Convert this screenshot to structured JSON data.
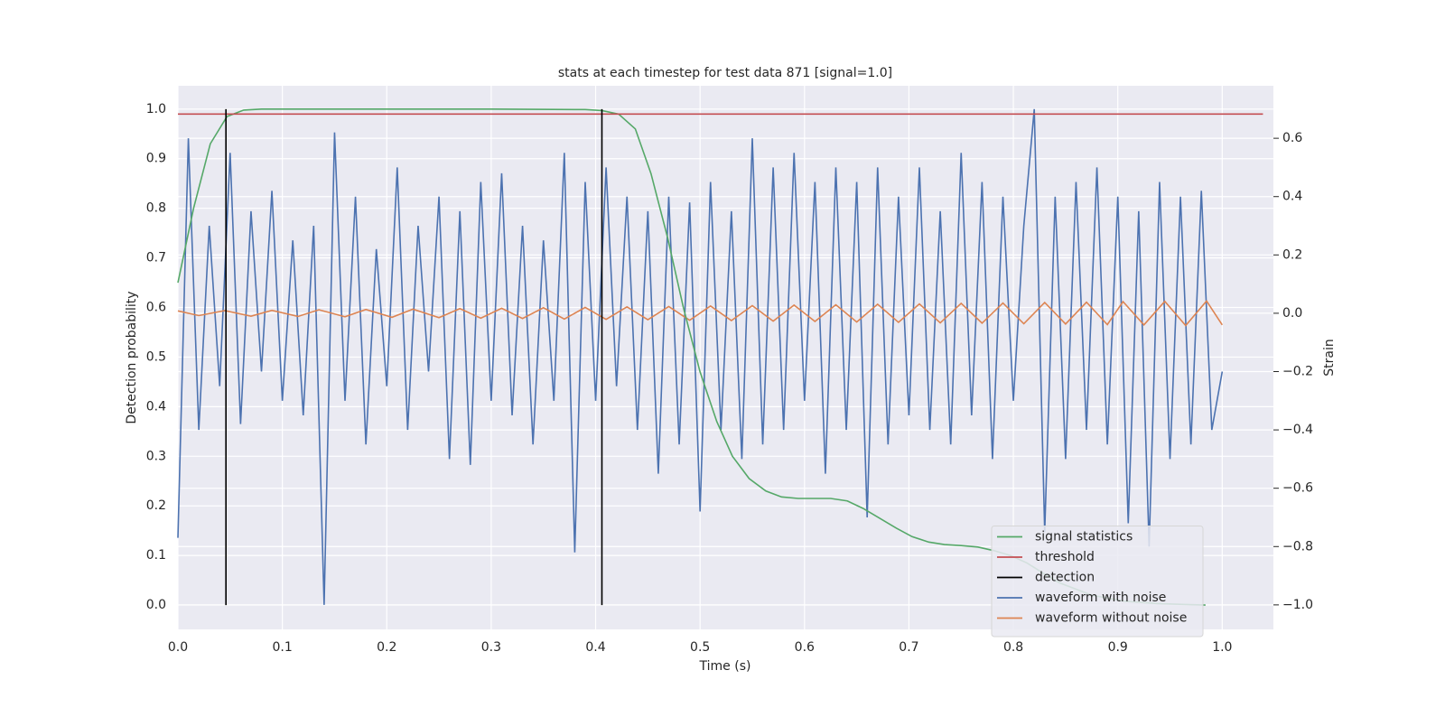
{
  "chart_data": {
    "type": "line",
    "title": "stats at each timestep for test data 871 [signal=1.0]",
    "x_label": "Time (s)",
    "y_label": "Detection probability",
    "y2_label": "Strain",
    "xlim": [
      0,
      1.049
    ],
    "ylim": [
      -0.049,
      1.047
    ],
    "y2lim": [
      -1.084,
      0.78
    ],
    "xticks": [
      {
        "value": 0,
        "label": "0.0"
      },
      0.1,
      0.2,
      0.3,
      0.4,
      0.5,
      0.6,
      0.7,
      0.8,
      0.9,
      {
        "value": 1,
        "label": "1.0"
      }
    ],
    "yticks": [
      {
        "value": 0,
        "label": "0.0"
      },
      0.1,
      0.2,
      0.3,
      0.4,
      0.5,
      0.6,
      0.7,
      0.8,
      0.9,
      {
        "value": 1,
        "label": "1.0"
      }
    ],
    "y2ticks": [
      {
        "value": -1,
        "label": "−1.0"
      },
      {
        "value": -0.8,
        "label": "−0.8"
      },
      {
        "value": -0.6,
        "label": "−0.6"
      },
      {
        "value": -0.4,
        "label": "−0.4"
      },
      {
        "value": -0.2,
        "label": "−0.2"
      },
      {
        "value": 0,
        "label": "0.0"
      },
      0.2,
      0.4,
      0.6
    ],
    "grid": true,
    "legend": "lower right",
    "series": [
      {
        "name": "signal statistics",
        "color": "#55a868",
        "axis": "y",
        "x": [
          0,
          0.015,
          0.031,
          0.047,
          0.063,
          0.08,
          0.2,
          0.3,
          0.39,
          0.406,
          0.422,
          0.438,
          0.453,
          0.469,
          0.484,
          0.5,
          0.516,
          0.531,
          0.547,
          0.563,
          0.578,
          0.594,
          0.609,
          0.625,
          0.641,
          0.656,
          0.672,
          0.688,
          0.703,
          0.719,
          0.734,
          0.75,
          0.766,
          0.781,
          0.797,
          0.813,
          0.828,
          0.844,
          0.875,
          0.906,
          0.938,
          0.969,
          0.984
        ],
        "values": [
          0.65,
          0.8,
          0.93,
          0.985,
          0.998,
          1.0,
          1.0,
          1.0,
          0.999,
          0.997,
          0.99,
          0.96,
          0.87,
          0.74,
          0.6,
          0.47,
          0.37,
          0.3,
          0.255,
          0.23,
          0.218,
          0.215,
          0.215,
          0.215,
          0.21,
          0.195,
          0.175,
          0.155,
          0.138,
          0.127,
          0.122,
          0.12,
          0.117,
          0.11,
          0.1,
          0.085,
          0.065,
          0.045,
          0.02,
          0.008,
          0.003,
          0.001,
          0.0
        ]
      },
      {
        "name": "threshold",
        "color": "#c44e52",
        "axis": "y",
        "x": [
          0,
          1.039
        ],
        "values": [
          0.99,
          0.99
        ]
      },
      {
        "name": "detection",
        "color": "#000000",
        "axis": "y",
        "x": [
          0.046,
          0.046,
          0.2,
          0.406,
          0.406
        ],
        "values": [
          0,
          1,
          null,
          0,
          1
        ]
      },
      {
        "name": "waveform with noise",
        "color": "#4c72b0",
        "axis": "y2",
        "x": [
          0,
          0.01,
          0.02,
          0.03,
          0.04,
          0.05,
          0.06,
          0.07,
          0.08,
          0.09,
          0.1,
          0.11,
          0.12,
          0.13,
          0.14,
          0.15,
          0.16,
          0.17,
          0.18,
          0.19,
          0.2,
          0.21,
          0.22,
          0.23,
          0.24,
          0.25,
          0.26,
          0.27,
          0.28,
          0.29,
          0.3,
          0.31,
          0.32,
          0.33,
          0.34,
          0.35,
          0.36,
          0.37,
          0.38,
          0.39,
          0.4,
          0.41,
          0.42,
          0.43,
          0.44,
          0.45,
          0.46,
          0.47,
          0.48,
          0.49,
          0.5,
          0.51,
          0.52,
          0.53,
          0.54,
          0.55,
          0.56,
          0.57,
          0.58,
          0.59,
          0.6,
          0.61,
          0.62,
          0.63,
          0.64,
          0.65,
          0.66,
          0.67,
          0.68,
          0.69,
          0.7,
          0.71,
          0.72,
          0.73,
          0.74,
          0.75,
          0.76,
          0.77,
          0.78,
          0.79,
          0.8,
          0.81,
          0.82,
          0.83,
          0.84,
          0.85,
          0.86,
          0.87,
          0.88,
          0.89,
          0.9,
          0.91,
          0.92,
          0.93,
          0.94,
          0.95,
          0.96,
          0.97,
          0.98,
          0.99,
          1.0
        ],
        "values": [
          -0.77,
          0.6,
          -0.4,
          0.3,
          -0.25,
          0.55,
          -0.38,
          0.35,
          -0.2,
          0.42,
          -0.3,
          0.25,
          -0.35,
          0.3,
          -1.0,
          0.62,
          -0.3,
          0.4,
          -0.45,
          0.22,
          -0.25,
          0.5,
          -0.4,
          0.3,
          -0.2,
          0.4,
          -0.5,
          0.35,
          -0.52,
          0.45,
          -0.3,
          0.48,
          -0.35,
          0.3,
          -0.45,
          0.25,
          -0.3,
          0.55,
          -0.82,
          0.45,
          -0.3,
          0.5,
          -0.25,
          0.4,
          -0.4,
          0.35,
          -0.55,
          0.4,
          -0.45,
          0.38,
          -0.68,
          0.45,
          -0.4,
          0.35,
          -0.5,
          0.6,
          -0.45,
          0.5,
          -0.4,
          0.55,
          -0.3,
          0.45,
          -0.55,
          0.5,
          -0.4,
          0.45,
          -0.7,
          0.5,
          -0.45,
          0.4,
          -0.35,
          0.5,
          -0.4,
          0.35,
          -0.45,
          0.55,
          -0.35,
          0.45,
          -0.5,
          0.4,
          -0.3,
          0.3,
          0.7,
          -0.75,
          0.4,
          -0.5,
          0.45,
          -0.4,
          0.5,
          -0.45,
          0.4,
          -0.72,
          0.35,
          -0.8,
          0.45,
          -0.5,
          0.4,
          -0.45,
          0.42,
          -0.4,
          -0.2
        ]
      },
      {
        "name": "waveform without noise",
        "color": "#dd8452",
        "axis": "y2",
        "x": [
          0,
          0.02,
          0.045,
          0.07,
          0.09,
          0.115,
          0.135,
          0.16,
          0.18,
          0.205,
          0.225,
          0.25,
          0.27,
          0.29,
          0.31,
          0.33,
          0.35,
          0.37,
          0.39,
          0.41,
          0.43,
          0.45,
          0.47,
          0.49,
          0.51,
          0.53,
          0.55,
          0.57,
          0.59,
          0.61,
          0.63,
          0.65,
          0.67,
          0.69,
          0.71,
          0.73,
          0.75,
          0.77,
          0.79,
          0.81,
          0.83,
          0.85,
          0.87,
          0.89,
          0.905,
          0.925,
          0.945,
          0.965,
          0.985,
          1.0
        ],
        "values": [
          0.008,
          -0.008,
          0.009,
          -0.01,
          0.01,
          -0.011,
          0.012,
          -0.012,
          0.013,
          -0.014,
          0.014,
          -0.015,
          0.016,
          -0.017,
          0.017,
          -0.018,
          0.019,
          -0.02,
          0.02,
          -0.021,
          0.022,
          -0.022,
          0.023,
          -0.024,
          0.025,
          -0.025,
          0.026,
          -0.027,
          0.028,
          -0.028,
          0.029,
          -0.03,
          0.031,
          -0.031,
          0.032,
          -0.033,
          0.034,
          -0.034,
          0.035,
          -0.036,
          0.037,
          -0.037,
          0.038,
          -0.039,
          0.04,
          -0.04,
          0.041,
          -0.042,
          0.042,
          -0.04
        ]
      }
    ]
  }
}
